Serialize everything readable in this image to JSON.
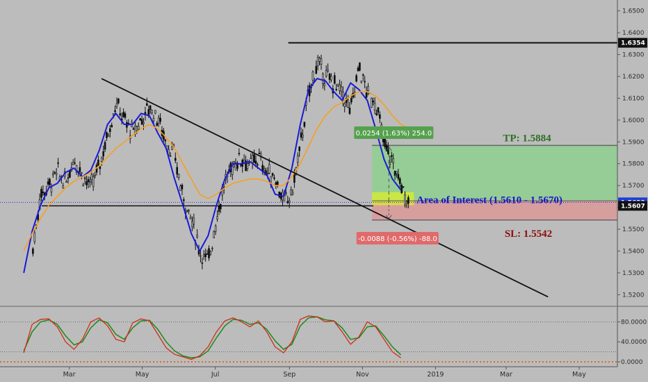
{
  "chart_data": {
    "type": "candlestick",
    "price_axis": {
      "range": [
        1.515,
        1.655
      ],
      "ticks": [
        "1.6500",
        "1.6400",
        "1.6300",
        "1.6200",
        "1.6100",
        "1.6000",
        "1.5900",
        "1.5800",
        "1.5700",
        "1.5600",
        "1.5500",
        "1.5400",
        "1.5300",
        "1.5200"
      ],
      "tick_values": [
        1.65,
        1.64,
        1.63,
        1.62,
        1.61,
        1.6,
        1.59,
        1.58,
        1.57,
        1.56,
        1.55,
        1.54,
        1.53,
        1.52
      ]
    },
    "time_axis": {
      "labels": [
        "Mar",
        "May",
        "Jul",
        "Sep",
        "Nov",
        "2019",
        "Mar",
        "May"
      ],
      "dates": [
        "2018-03-01",
        "2018-05-01",
        "2018-07-01",
        "2018-09-01",
        "2018-11-01",
        "2019-01-01",
        "2019-03-01",
        "2019-05-01"
      ]
    },
    "price_tags": [
      {
        "text": "1.6354",
        "value": 1.6354,
        "style": "dark"
      },
      {
        "text": "1.5623",
        "value": 1.5623,
        "style": "blue"
      },
      {
        "text": "1.5607",
        "value": 1.5607,
        "style": "dark"
      }
    ],
    "close_price": 1.5623,
    "closes": [
      {
        "date": "2018-01-29",
        "close": 1.538
      },
      {
        "date": "2018-02-05",
        "close": 1.566
      },
      {
        "date": "2018-02-12",
        "close": 1.57
      },
      {
        "date": "2018-02-19",
        "close": 1.576
      },
      {
        "date": "2018-02-26",
        "close": 1.571
      },
      {
        "date": "2018-03-05",
        "close": 1.583
      },
      {
        "date": "2018-03-12",
        "close": 1.575
      },
      {
        "date": "2018-03-19",
        "close": 1.569
      },
      {
        "date": "2018-03-26",
        "close": 1.579
      },
      {
        "date": "2018-04-02",
        "close": 1.593
      },
      {
        "date": "2018-04-09",
        "close": 1.608
      },
      {
        "date": "2018-04-16",
        "close": 1.6
      },
      {
        "date": "2018-04-23",
        "close": 1.594
      },
      {
        "date": "2018-04-30",
        "close": 1.6
      },
      {
        "date": "2018-05-07",
        "close": 1.606
      },
      {
        "date": "2018-05-14",
        "close": 1.601
      },
      {
        "date": "2018-05-21",
        "close": 1.59
      },
      {
        "date": "2018-05-28",
        "close": 1.583
      },
      {
        "date": "2018-06-04",
        "close": 1.565
      },
      {
        "date": "2018-06-11",
        "close": 1.555
      },
      {
        "date": "2018-06-18",
        "close": 1.54
      },
      {
        "date": "2018-06-25",
        "close": 1.535
      },
      {
        "date": "2018-07-02",
        "close": 1.555
      },
      {
        "date": "2018-07-09",
        "close": 1.571
      },
      {
        "date": "2018-07-16",
        "close": 1.58
      },
      {
        "date": "2018-07-23",
        "close": 1.583
      },
      {
        "date": "2018-07-30",
        "close": 1.579
      },
      {
        "date": "2018-08-06",
        "close": 1.583
      },
      {
        "date": "2018-08-13",
        "close": 1.576
      },
      {
        "date": "2018-08-20",
        "close": 1.574
      },
      {
        "date": "2018-08-27",
        "close": 1.562
      },
      {
        "date": "2018-09-03",
        "close": 1.566
      },
      {
        "date": "2018-09-10",
        "close": 1.588
      },
      {
        "date": "2018-09-17",
        "close": 1.612
      },
      {
        "date": "2018-09-24",
        "close": 1.626
      },
      {
        "date": "2018-10-01",
        "close": 1.62
      },
      {
        "date": "2018-10-08",
        "close": 1.617
      },
      {
        "date": "2018-10-15",
        "close": 1.612
      },
      {
        "date": "2018-10-22",
        "close": 1.604
      },
      {
        "date": "2018-10-29",
        "close": 1.625
      },
      {
        "date": "2018-11-05",
        "close": 1.612
      },
      {
        "date": "2018-11-12",
        "close": 1.608
      },
      {
        "date": "2018-11-19",
        "close": 1.589
      },
      {
        "date": "2018-11-26",
        "close": 1.581
      },
      {
        "date": "2018-12-03",
        "close": 1.57
      },
      {
        "date": "2018-12-10",
        "close": 1.5623
      }
    ],
    "moving_averages": [
      {
        "name": "fast MA",
        "color": "#1a1ad6",
        "start": "2018-01-22",
        "end": "2018-12-10",
        "values": [
          1.53,
          1.549,
          1.561,
          1.569,
          1.571,
          1.576,
          1.578,
          1.574,
          1.577,
          1.586,
          1.598,
          1.603,
          1.598,
          1.598,
          1.603,
          1.602,
          1.594,
          1.587,
          1.573,
          1.561,
          1.548,
          1.54,
          1.547,
          1.561,
          1.573,
          1.58,
          1.58,
          1.581,
          1.578,
          1.575,
          1.566,
          1.565,
          1.578,
          1.598,
          1.614,
          1.619,
          1.618,
          1.613,
          1.609,
          1.617,
          1.614,
          1.609,
          1.596,
          1.582,
          1.573,
          1.568
        ]
      },
      {
        "name": "slow MA",
        "color": "#f5a020",
        "start": "2018-01-22",
        "end": "2018-12-17",
        "values": [
          1.54,
          1.548,
          1.555,
          1.561,
          1.565,
          1.569,
          1.572,
          1.574,
          1.576,
          1.579,
          1.583,
          1.587,
          1.59,
          1.593,
          1.596,
          1.598,
          1.596,
          1.592,
          1.587,
          1.58,
          1.573,
          1.566,
          1.564,
          1.566,
          1.569,
          1.571,
          1.572,
          1.573,
          1.573,
          1.572,
          1.57,
          1.57,
          1.574,
          1.58,
          1.588,
          1.596,
          1.602,
          1.606,
          1.608,
          1.611,
          1.613,
          1.613,
          1.611,
          1.607,
          1.602,
          1.598,
          1.596
        ]
      }
    ],
    "drawings": {
      "resistance": {
        "level": 1.6354,
        "from": "2018-08-31",
        "to": "2019-06-15"
      },
      "support": {
        "level": 1.5607,
        "from": "2018-02-06",
        "to": "2018-11-10"
      },
      "trendline": {
        "from": {
          "date": "2018-03-28",
          "price": 1.619
        },
        "to": {
          "date": "2019-04-05",
          "price": 1.519
        }
      },
      "long_position": {
        "from": "2018-11-09",
        "to": "2019-06-15",
        "entry": 1.563,
        "target": 1.5884,
        "stop": 1.5542
      }
    },
    "annotations": {
      "tp": "TP: 1.5884",
      "sl": "SL: 1.5542",
      "zone": "Area of Interest (1.5610 - 1.5670)",
      "gain": "0.0254 (1.63%) 254.0",
      "loss": "-0.0088 (-0.56%) -88.0"
    },
    "oscillator": {
      "ticks": [
        "80.0000",
        "40.0000",
        "0.0000"
      ],
      "tick_values": [
        80,
        40,
        0
      ],
      "range": [
        0,
        100
      ],
      "levels": [
        80,
        20
      ],
      "start": "2018-01-22",
      "end": "2018-12-10",
      "k_color": "#d42a1a",
      "d_color": "#1a8a1a",
      "k_values": [
        18,
        75,
        85,
        86,
        70,
        40,
        25,
        45,
        80,
        88,
        72,
        45,
        40,
        78,
        86,
        82,
        55,
        28,
        15,
        10,
        5,
        12,
        30,
        60,
        82,
        88,
        80,
        70,
        82,
        60,
        30,
        18,
        40,
        85,
        92,
        90,
        80,
        82,
        60,
        35,
        50,
        80,
        70,
        45,
        20,
        8
      ],
      "d_values": [
        22,
        60,
        80,
        84,
        75,
        52,
        34,
        40,
        68,
        84,
        78,
        55,
        45,
        68,
        82,
        83,
        65,
        40,
        22,
        12,
        8,
        10,
        22,
        48,
        72,
        85,
        83,
        75,
        78,
        65,
        42,
        25,
        35,
        72,
        88,
        90,
        84,
        82,
        68,
        45,
        48,
        70,
        72,
        52,
        30,
        14
      ]
    }
  },
  "colors": {
    "bg": "#bcbcbc",
    "candle": "#0d0d0d",
    "fast_ma": "#1a1ad6",
    "slow_ma": "#f5a020",
    "tp_zone": "#8fcf8f",
    "sl_zone": "#d99a9a",
    "aoi_zone": "#d8ef2a",
    "tp_text": "#2e6e22",
    "sl_text": "#8b0d0d",
    "aoi_text": "#1616c8",
    "gain_box": "#56a14e",
    "loss_box": "#e06a6a"
  }
}
